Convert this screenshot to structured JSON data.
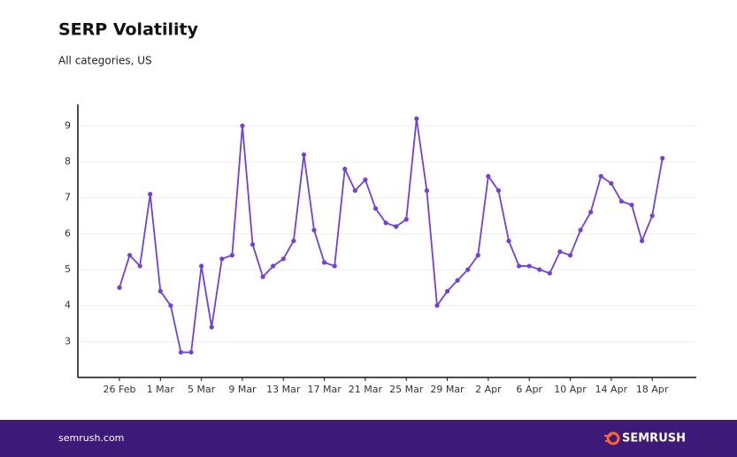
{
  "chart_data": {
    "type": "line",
    "title": "SERP Volatility",
    "subtitle": "All categories, US",
    "categories": [
      "26 Feb",
      null,
      null,
      null,
      "1 Mar",
      null,
      null,
      null,
      "5 Mar",
      null,
      null,
      null,
      "9 Mar",
      null,
      null,
      null,
      "13 Mar",
      null,
      null,
      null,
      "17 Mar",
      null,
      null,
      null,
      "21 Mar",
      null,
      null,
      null,
      "25 Mar",
      null,
      null,
      null,
      "29 Mar",
      null,
      null,
      null,
      "2 Apr",
      null,
      null,
      null,
      "6 Apr",
      null,
      null,
      null,
      "10 Apr",
      null,
      null,
      null,
      "14 Apr",
      null,
      null,
      null,
      "18 Apr",
      null
    ],
    "series": [
      {
        "name": "SERP Volatility",
        "color": "#7340d8",
        "values": [
          4.5,
          5.4,
          5.1,
          7.1,
          4.4,
          4.0,
          2.7,
          2.7,
          5.1,
          3.4,
          5.3,
          5.4,
          9.0,
          5.7,
          4.8,
          5.1,
          5.3,
          5.8,
          8.2,
          6.1,
          5.2,
          5.1,
          7.8,
          7.2,
          7.5,
          6.7,
          6.3,
          6.2,
          6.4,
          9.2,
          7.2,
          4.0,
          4.4,
          4.7,
          5.0,
          5.4,
          7.6,
          7.2,
          5.8,
          5.1,
          5.1,
          5.0,
          4.9,
          5.5,
          5.4,
          6.1,
          6.6,
          7.6,
          7.4,
          6.9,
          6.8,
          5.8,
          6.5,
          8.1
        ]
      }
    ],
    "ylim": [
      2,
      9.6
    ],
    "yticks": [
      3,
      4,
      5,
      6,
      7,
      8,
      9
    ],
    "grid": true
  },
  "footer": {
    "site": "semrush.com",
    "brand": "SEMRUSH"
  }
}
